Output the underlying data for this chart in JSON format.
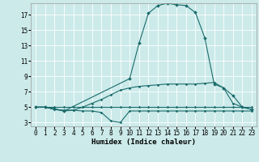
{
  "xlabel": "Humidex (Indice chaleur)",
  "bg_color": "#cceaea",
  "grid_color": "#ffffff",
  "line_color": "#1a6b6b",
  "xlim": [
    -0.5,
    23.5
  ],
  "ylim": [
    2.5,
    18.5
  ],
  "xticks": [
    0,
    1,
    2,
    3,
    4,
    5,
    6,
    7,
    8,
    9,
    10,
    11,
    12,
    13,
    14,
    15,
    16,
    17,
    18,
    19,
    20,
    21,
    22,
    23
  ],
  "yticks": [
    3,
    5,
    7,
    9,
    11,
    13,
    15,
    17
  ],
  "line1_x": [
    0,
    1,
    2,
    3,
    4,
    5,
    6,
    7,
    8,
    9,
    10,
    11,
    12,
    13,
    14,
    15,
    16,
    17,
    18,
    19,
    20,
    21,
    22,
    23
  ],
  "line1_y": [
    5,
    5,
    5,
    5,
    5,
    5,
    5,
    5,
    5,
    5,
    5,
    5,
    5,
    5,
    5,
    5,
    5,
    5,
    5,
    5,
    5,
    5,
    5,
    5
  ],
  "line2_x": [
    0,
    1,
    2,
    3,
    4,
    5,
    6,
    7,
    8,
    9,
    10,
    11,
    12,
    13,
    14,
    15,
    16,
    17,
    18,
    19,
    20,
    21,
    22,
    23
  ],
  "line2_y": [
    5,
    5,
    4.7,
    4.6,
    4.6,
    5.0,
    5.5,
    6.0,
    6.6,
    7.2,
    7.5,
    7.7,
    7.8,
    7.9,
    8.0,
    8.0,
    8.0,
    8.0,
    8.1,
    8.2,
    7.5,
    5.5,
    5.0,
    4.7
  ],
  "line3_x": [
    0,
    1,
    2,
    3,
    4,
    5,
    6,
    7,
    8,
    9,
    10,
    11,
    12,
    13,
    14,
    15,
    16,
    17,
    18,
    19,
    20,
    21,
    22,
    23
  ],
  "line3_y": [
    5.0,
    5.0,
    4.7,
    4.5,
    4.6,
    4.5,
    4.5,
    4.3,
    3.2,
    3.0,
    4.5,
    4.5,
    4.5,
    4.5,
    4.5,
    4.5,
    4.5,
    4.5,
    4.5,
    4.5,
    4.5,
    4.5,
    4.5,
    4.5
  ],
  "line4_x": [
    0,
    1,
    2,
    3,
    10,
    11,
    12,
    13,
    14,
    15,
    16,
    17,
    18,
    19,
    20,
    21,
    22,
    23
  ],
  "line4_y": [
    5.0,
    5.0,
    4.8,
    4.5,
    8.7,
    13.3,
    17.2,
    18.2,
    18.5,
    18.3,
    18.2,
    17.3,
    14.0,
    8.0,
    7.5,
    6.5,
    5.0,
    4.7
  ]
}
